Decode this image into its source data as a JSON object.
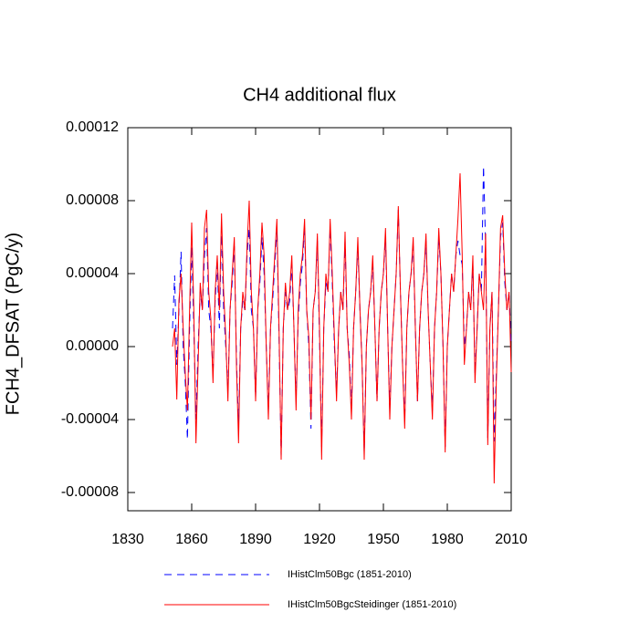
{
  "chart_data": {
    "type": "line",
    "title": "CH4 additional flux",
    "y_label": "FCH4_DFSAT  (PgC/y)",
    "x": [
      1851,
      1852,
      1853,
      1854,
      1855,
      1856,
      1857,
      1858,
      1859,
      1860,
      1861,
      1862,
      1863,
      1864,
      1865,
      1866,
      1867,
      1868,
      1869,
      1870,
      1871,
      1872,
      1873,
      1874,
      1875,
      1876,
      1877,
      1878,
      1879,
      1880,
      1881,
      1882,
      1883,
      1884,
      1885,
      1886,
      1887,
      1888,
      1889,
      1890,
      1891,
      1892,
      1893,
      1894,
      1895,
      1896,
      1897,
      1898,
      1899,
      1900,
      1901,
      1902,
      1903,
      1904,
      1905,
      1906,
      1907,
      1908,
      1909,
      1910,
      1911,
      1912,
      1913,
      1914,
      1915,
      1916,
      1917,
      1918,
      1919,
      1920,
      1921,
      1922,
      1923,
      1924,
      1925,
      1926,
      1927,
      1928,
      1929,
      1930,
      1931,
      1932,
      1933,
      1934,
      1935,
      1936,
      1937,
      1938,
      1939,
      1940,
      1941,
      1942,
      1943,
      1944,
      1945,
      1946,
      1947,
      1948,
      1949,
      1950,
      1951,
      1952,
      1953,
      1954,
      1955,
      1956,
      1957,
      1958,
      1959,
      1960,
      1961,
      1962,
      1963,
      1964,
      1965,
      1966,
      1967,
      1968,
      1969,
      1970,
      1971,
      1972,
      1973,
      1974,
      1975,
      1976,
      1977,
      1978,
      1979,
      1980,
      1981,
      1982,
      1983,
      1984,
      1985,
      1986,
      1987,
      1988,
      1989,
      1990,
      1991,
      1992,
      1993,
      1994,
      1995,
      1996,
      1997,
      1998,
      1999,
      2000,
      2001,
      2002,
      2003,
      2004,
      2005,
      2006,
      2007,
      2008,
      2009,
      2010
    ],
    "series": [
      {
        "name": "IHistClm50Bgc (1851-2010)",
        "color": "#0000ff",
        "line_style": "dashed",
        "values": [
          1e-05,
          3.9e-05,
          -1e-05,
          2e-05,
          5.2e-05,
          0,
          -2e-05,
          -5.1e-05,
          1e-05,
          5.5e-05,
          1e-05,
          -4e-05,
          0,
          3e-05,
          2e-05,
          5e-05,
          6.5e-05,
          2e-05,
          1e-05,
          -1.5e-05,
          2.5e-05,
          4.5e-05,
          1e-05,
          6.5e-05,
          2e-05,
          0,
          -2.4e-05,
          2e-05,
          3.5e-05,
          5.5e-05,
          -5e-06,
          -4.5e-05,
          1e-05,
          2.5e-05,
          2e-05,
          5e-05,
          6.5e-05,
          2e-05,
          1e-05,
          -2.8e-05,
          2e-05,
          3.5e-05,
          6e-05,
          4e-05,
          0,
          -3.5e-05,
          1e-05,
          2.5e-05,
          4.5e-05,
          6.5e-05,
          5e-06,
          -6e-05,
          1e-05,
          3e-05,
          2e-05,
          2.5e-05,
          4.5e-05,
          1e-05,
          -3e-05,
          1.5e-05,
          3.5e-05,
          4.5e-05,
          6.5e-05,
          2e-05,
          0,
          -4.5e-05,
          2e-05,
          3e-05,
          5.8e-05,
          5e-06,
          -5.5e-05,
          1e-05,
          3.5e-05,
          3e-05,
          6.5e-05,
          3.5e-05,
          0,
          -2.5e-05,
          1e-05,
          3e-05,
          2e-05,
          5.8e-05,
          1e-05,
          -5e-06,
          -3.5e-05,
          1e-05,
          3e-05,
          5.5e-05,
          2e-05,
          -1e-05,
          -5.8e-05,
          0,
          2e-05,
          3e-05,
          4.5e-05,
          1e-05,
          -3e-05,
          1e-05,
          3e-05,
          4e-05,
          6e-05,
          1e-05,
          -3.5e-05,
          0,
          2e-05,
          4e-05,
          7.5e-05,
          3e-05,
          -1e-05,
          -4e-05,
          1e-05,
          3e-05,
          4e-05,
          5.5e-05,
          1e-05,
          -3e-05,
          1e-05,
          3e-05,
          4e-05,
          5.8e-05,
          2e-05,
          -1e-05,
          -3.5e-05,
          1e-05,
          3e-05,
          6e-05,
          4e-05,
          0,
          -5.5e-05,
          0,
          2e-05,
          4e-05,
          3e-05,
          5e-05,
          5.8e-05,
          5e-05,
          4.5e-05,
          0,
          1e-05,
          3e-05,
          2e-05,
          4.5e-05,
          -1.5e-05,
          1e-05,
          4e-05,
          3e-05,
          9.9e-05,
          5.5e-05,
          -5e-05,
          1e-05,
          3e-05,
          -5.2e-05,
          -1.5e-05,
          2e-05,
          6e-05,
          6.8e-05,
          3.5e-05,
          2e-05,
          3e-05,
          0
        ]
      },
      {
        "name": "IHistClm50BgcSteidinger (1851-2010)",
        "color": "#ff0000",
        "line_style": "solid",
        "values": [
          0,
          1e-05,
          -2.9e-05,
          2.5e-05,
          4e-05,
          1e-05,
          -1.5e-05,
          -3.5e-05,
          2e-05,
          6.8e-05,
          2e-05,
          -5.3e-05,
          -1e-05,
          3.5e-05,
          2e-05,
          6.5e-05,
          7.5e-05,
          3e-05,
          1.5e-05,
          -2e-05,
          3e-05,
          5e-05,
          2e-05,
          7.3e-05,
          3e-05,
          5e-06,
          -3e-05,
          2e-05,
          4e-05,
          6e-05,
          -1e-05,
          -5.3e-05,
          1e-05,
          3e-05,
          2e-05,
          5.5e-05,
          8e-05,
          3e-05,
          1e-05,
          -3e-05,
          2e-05,
          4e-05,
          6.8e-05,
          5e-05,
          0,
          -4e-05,
          1e-05,
          3e-05,
          5e-05,
          7e-05,
          1e-05,
          -6.2e-05,
          1e-05,
          3.5e-05,
          2e-05,
          3e-05,
          5e-05,
          1e-05,
          -3.5e-05,
          2e-05,
          4e-05,
          5e-05,
          7e-05,
          2e-05,
          5e-06,
          -4e-05,
          2e-05,
          3e-05,
          6.2e-05,
          1e-05,
          -6.2e-05,
          1e-05,
          4e-05,
          3e-05,
          7e-05,
          4e-05,
          5e-06,
          -3e-05,
          1e-05,
          3e-05,
          2e-05,
          6.3e-05,
          1e-05,
          -1e-05,
          -4e-05,
          1e-05,
          3e-05,
          6e-05,
          2e-05,
          -1e-05,
          -6.2e-05,
          0,
          2e-05,
          3e-05,
          5e-05,
          1e-05,
          -3e-05,
          1e-05,
          3e-05,
          4e-05,
          6.5e-05,
          1e-05,
          -4e-05,
          0,
          2e-05,
          4e-05,
          7.7e-05,
          3e-05,
          -1e-05,
          -4.5e-05,
          1e-05,
          3e-05,
          4e-05,
          6e-05,
          1e-05,
          -3e-05,
          1e-05,
          3e-05,
          4e-05,
          6.2e-05,
          2e-05,
          -1e-05,
          -4e-05,
          1e-05,
          3e-05,
          6.5e-05,
          4e-05,
          0,
          -5.8e-05,
          0,
          2e-05,
          4e-05,
          3e-05,
          5e-05,
          7e-05,
          9.5e-05,
          5e-05,
          -1e-05,
          1e-05,
          3e-05,
          2e-05,
          5e-05,
          -2e-05,
          1e-05,
          4e-05,
          3e-05,
          2e-05,
          6.2e-05,
          -5.4e-05,
          1e-05,
          3e-05,
          -7.5e-05,
          -2e-05,
          2e-05,
          6.5e-05,
          7.2e-05,
          4e-05,
          2e-05,
          3e-05,
          -1.4e-05
        ]
      }
    ],
    "xlim": [
      1830,
      2010
    ],
    "xticks": [
      1830,
      1860,
      1890,
      1920,
      1950,
      1980,
      2010
    ],
    "ylim": [
      -9e-05,
      0.00012
    ],
    "yticks": [
      -8e-05,
      -4e-05,
      {
        "value": 0,
        "label": "0.00000"
      },
      4e-05,
      8e-05,
      0.00012
    ],
    "legend": "bottom"
  }
}
